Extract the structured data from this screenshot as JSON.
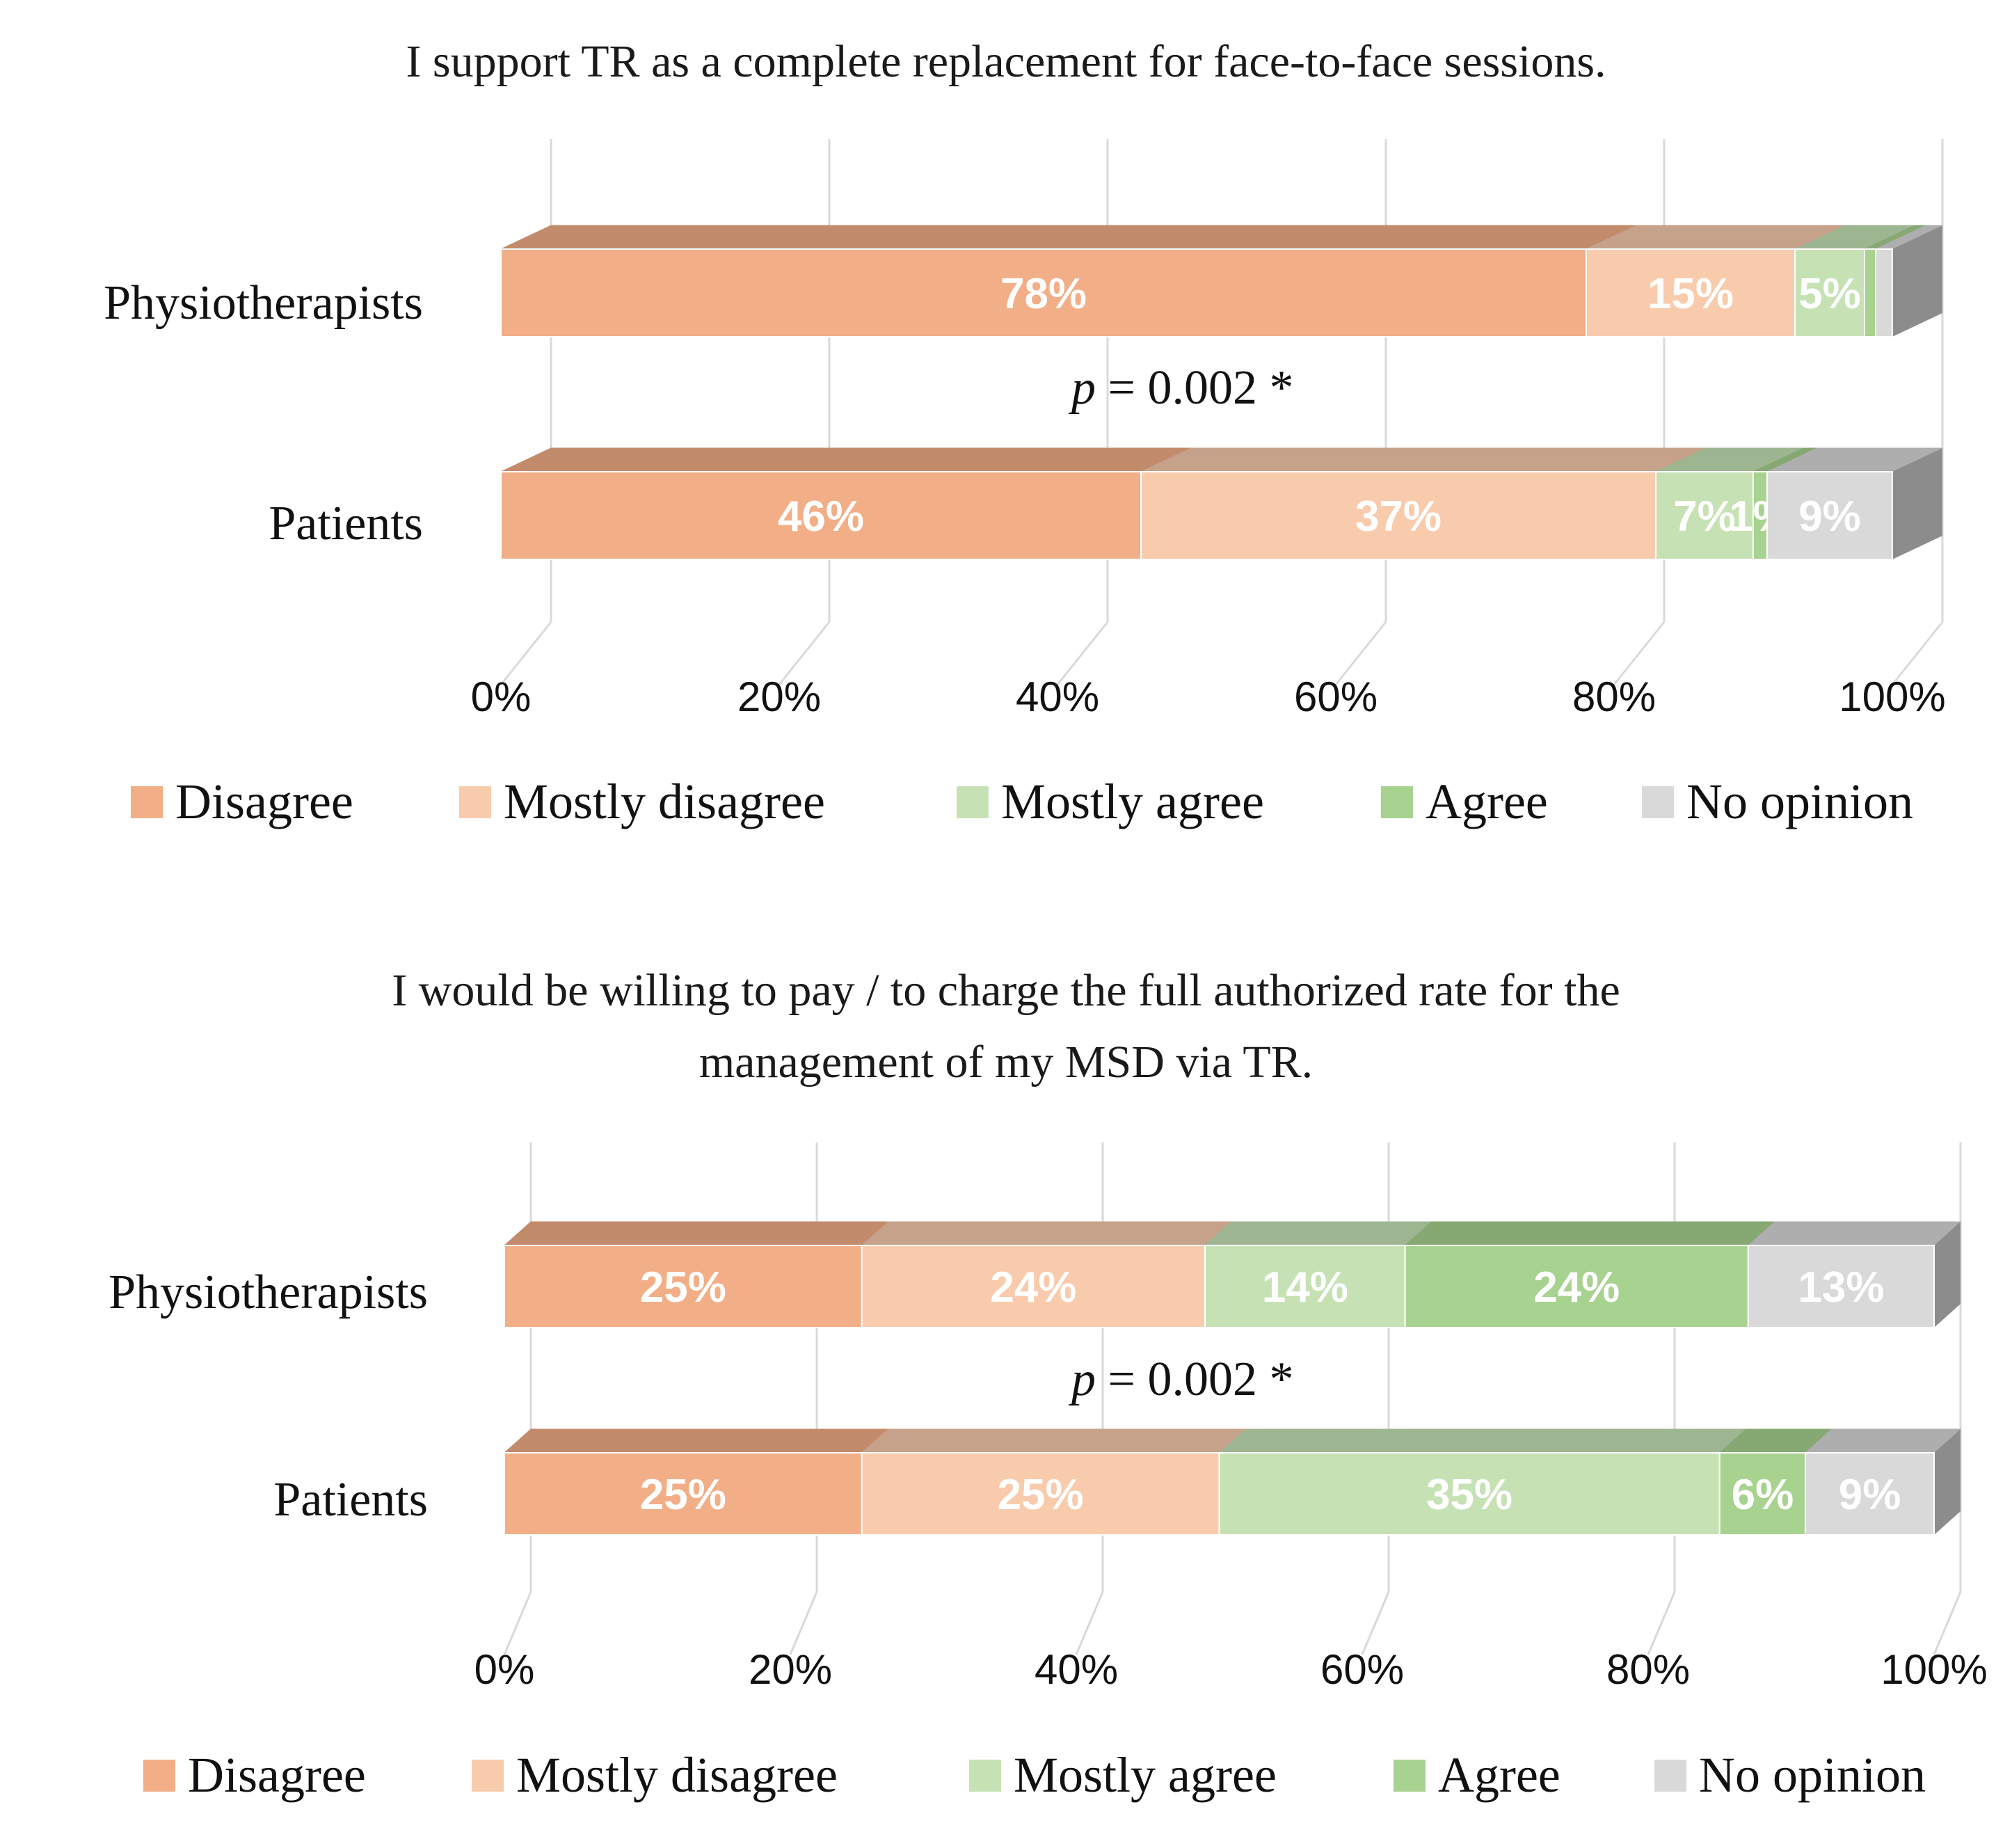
{
  "chart_data": [
    {
      "type": "bar",
      "stacked": true,
      "orientation": "horizontal",
      "title": "I support TR as a complete replacement for face-to-face sessions.",
      "title_lines": [
        "I support TR as a complete replacement for face-to-face sessions."
      ],
      "categories": [
        "Physiotherapists",
        "Patients"
      ],
      "series": [
        {
          "name": "Disagree",
          "values": [
            78,
            46
          ],
          "labels": [
            "78%",
            "46%"
          ]
        },
        {
          "name": "Mostly disagree",
          "values": [
            15,
            37
          ],
          "labels": [
            "15%",
            "37%"
          ]
        },
        {
          "name": "Mostly agree",
          "values": [
            5,
            7
          ],
          "labels": [
            "5%",
            "7%"
          ]
        },
        {
          "name": "Agree",
          "values": [
            0.8,
            1
          ],
          "labels": [
            "",
            "1%"
          ]
        },
        {
          "name": "No opinion",
          "values": [
            1.2,
            9
          ],
          "labels": [
            "",
            "9%"
          ]
        }
      ],
      "xlim": [
        0,
        100
      ],
      "xticks": [
        "0%",
        "20%",
        "40%",
        "60%",
        "80%",
        "100%"
      ],
      "annotation": {
        "prefix": "p",
        "text": " = 0.002 *"
      },
      "legend_position": "bottom"
    },
    {
      "type": "bar",
      "stacked": true,
      "orientation": "horizontal",
      "title": "I would be willing to pay / to charge the full authorized rate for the management of my MSD via TR.",
      "title_lines": [
        "I would be willing to pay / to charge the full authorized rate for the",
        "management of my MSD via TR."
      ],
      "categories": [
        "Physiotherapists",
        "Patients"
      ],
      "series": [
        {
          "name": "Disagree",
          "values": [
            25,
            25
          ],
          "labels": [
            "25%",
            "25%"
          ]
        },
        {
          "name": "Mostly disagree",
          "values": [
            24,
            25
          ],
          "labels": [
            "24%",
            "25%"
          ]
        },
        {
          "name": "Mostly agree",
          "values": [
            14,
            35
          ],
          "labels": [
            "14%",
            "35%"
          ]
        },
        {
          "name": "Agree",
          "values": [
            24,
            6
          ],
          "labels": [
            "24%",
            "6%"
          ]
        },
        {
          "name": "No opinion",
          "values": [
            13,
            9
          ],
          "labels": [
            "13%",
            "9%"
          ]
        }
      ],
      "xlim": [
        0,
        100
      ],
      "xticks": [
        "0%",
        "20%",
        "40%",
        "60%",
        "80%",
        "100%"
      ],
      "annotation": {
        "prefix": "p",
        "text": " = 0.002 *"
      },
      "legend_position": "bottom"
    }
  ],
  "colors": {
    "Disagree": "#f2ae86",
    "Mostly disagree": "#f8cbad",
    "Mostly agree": "#c6e2b5",
    "Agree": "#a8d28f",
    "No opinion": "#d9d9d9",
    "gridline": "#d9d9d9"
  }
}
